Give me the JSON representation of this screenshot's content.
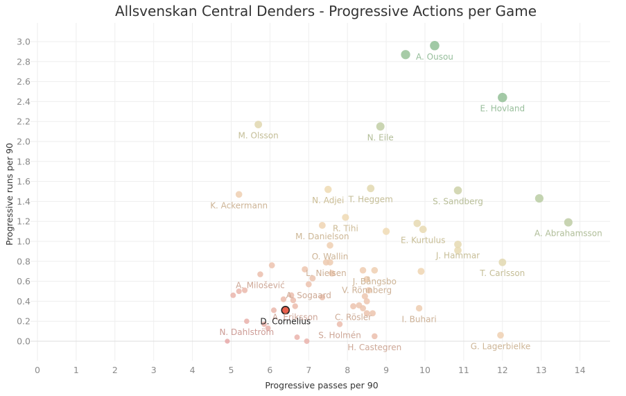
{
  "chart_data": {
    "type": "scatter",
    "title": "Allsvenskan Central Denders - Progressive Actions per Game",
    "xlabel": "Progressive passes per 90",
    "ylabel": "Progressive runs per 90",
    "xlim": [
      0,
      14.5
    ],
    "ylim": [
      -0.2,
      3.1
    ],
    "x_ticks": [
      0,
      1,
      2,
      3,
      4,
      5,
      6,
      7,
      8,
      9,
      10,
      11,
      12,
      13,
      14
    ],
    "y_ticks": [
      0.0,
      0.2,
      0.4,
      0.6,
      0.8,
      1.0,
      1.2,
      1.4,
      1.6,
      1.8,
      2.0,
      2.2,
      2.4,
      2.6,
      2.8,
      3.0
    ],
    "y_tick_labels": [
      "0.0",
      "0.2",
      "0.4",
      "0.6",
      "0.8",
      "1.0",
      "1.2",
      "1.4",
      "1.6",
      "1.8",
      "2.0",
      "2.2",
      "2.4",
      "2.6",
      "2.8",
      "3.0"
    ],
    "grid": true,
    "color_scale": {
      "low": "#e8a8a8",
      "mid": "#f0dcb4",
      "high": "#8fbf95"
    },
    "highlight_color": "#e8604c",
    "points": [
      {
        "label": "A. Ousou",
        "x": 10.25,
        "y": 2.96
      },
      {
        "label": "",
        "x": 9.5,
        "y": 2.87
      },
      {
        "label": "E. Hovland",
        "x": 12.0,
        "y": 2.44
      },
      {
        "label": "M. Olsson",
        "x": 5.7,
        "y": 2.17
      },
      {
        "label": "N. Eile",
        "x": 8.85,
        "y": 2.15
      },
      {
        "label": "N. Adjei",
        "x": 7.5,
        "y": 1.52
      },
      {
        "label": "T. Heggem",
        "x": 8.6,
        "y": 1.53
      },
      {
        "label": "S. Sandberg",
        "x": 10.85,
        "y": 1.51
      },
      {
        "label": "K. Ackermann",
        "x": 5.2,
        "y": 1.47
      },
      {
        "label": "",
        "x": 12.95,
        "y": 1.43
      },
      {
        "label": "R. Tihi",
        "x": 7.95,
        "y": 1.24
      },
      {
        "label": "A. Abrahamsson",
        "x": 13.7,
        "y": 1.19
      },
      {
        "label": "M. Danielson",
        "x": 7.35,
        "y": 1.16
      },
      {
        "label": "",
        "x": 9.8,
        "y": 1.18
      },
      {
        "label": "",
        "x": 9.0,
        "y": 1.1
      },
      {
        "label": "E. Kurtulus",
        "x": 9.95,
        "y": 1.12
      },
      {
        "label": "O. Wallin",
        "x": 7.55,
        "y": 0.96
      },
      {
        "label": "J. Hammar",
        "x": 10.85,
        "y": 0.97
      },
      {
        "label": "",
        "x": 10.85,
        "y": 0.91
      },
      {
        "label": "L. Nielsen",
        "x": 7.45,
        "y": 0.79
      },
      {
        "label": "",
        "x": 7.55,
        "y": 0.79
      },
      {
        "label": "J. Bångsbo",
        "x": 8.7,
        "y": 0.71
      },
      {
        "label": "T. Carlsson",
        "x": 12.0,
        "y": 0.79
      },
      {
        "label": "",
        "x": 6.05,
        "y": 0.76
      },
      {
        "label": "",
        "x": 6.9,
        "y": 0.72
      },
      {
        "label": "",
        "x": 8.4,
        "y": 0.71
      },
      {
        "label": "",
        "x": 9.9,
        "y": 0.7
      },
      {
        "label": "A. Milošević",
        "x": 5.75,
        "y": 0.67
      },
      {
        "label": "",
        "x": 7.6,
        "y": 0.68
      },
      {
        "label": "",
        "x": 7.1,
        "y": 0.63
      },
      {
        "label": "V. Rönnberg",
        "x": 8.5,
        "y": 0.62
      },
      {
        "label": "A. Sogaard",
        "x": 7.0,
        "y": 0.57
      },
      {
        "label": "",
        "x": 5.35,
        "y": 0.51
      },
      {
        "label": "",
        "x": 5.2,
        "y": 0.5
      },
      {
        "label": "",
        "x": 8.55,
        "y": 0.51
      },
      {
        "label": "",
        "x": 5.05,
        "y": 0.46
      },
      {
        "label": "",
        "x": 6.55,
        "y": 0.46
      },
      {
        "label": "",
        "x": 6.6,
        "y": 0.41
      },
      {
        "label": "",
        "x": 6.35,
        "y": 0.42
      },
      {
        "label": "",
        "x": 7.35,
        "y": 0.44
      },
      {
        "label": "",
        "x": 8.45,
        "y": 0.45
      },
      {
        "label": "",
        "x": 8.5,
        "y": 0.4
      },
      {
        "label": "A. Eriksson",
        "x": 6.65,
        "y": 0.35
      },
      {
        "label": "C. Rösler",
        "x": 8.15,
        "y": 0.35
      },
      {
        "label": "",
        "x": 8.3,
        "y": 0.36
      },
      {
        "label": "",
        "x": 8.4,
        "y": 0.33
      },
      {
        "label": "I. Buhari",
        "x": 9.85,
        "y": 0.33
      },
      {
        "label": "",
        "x": 6.1,
        "y": 0.31
      },
      {
        "label": "",
        "x": 8.5,
        "y": 0.28
      },
      {
        "label": "",
        "x": 8.65,
        "y": 0.28
      },
      {
        "label": "N. Dahlström",
        "x": 5.4,
        "y": 0.2
      },
      {
        "label": "",
        "x": 5.85,
        "y": 0.17
      },
      {
        "label": "S. Holmén",
        "x": 7.8,
        "y": 0.17
      },
      {
        "label": "",
        "x": 5.95,
        "y": 0.13
      },
      {
        "label": "G. Lagerbielke",
        "x": 11.95,
        "y": 0.06
      },
      {
        "label": "H. Castegren",
        "x": 8.7,
        "y": 0.05
      },
      {
        "label": "",
        "x": 6.7,
        "y": 0.04
      },
      {
        "label": "",
        "x": 4.9,
        "y": 0.0
      },
      {
        "label": "",
        "x": 6.95,
        "y": 0.0
      },
      {
        "label": "D. Cornelius",
        "x": 6.4,
        "y": 0.31,
        "highlight": true
      }
    ]
  }
}
